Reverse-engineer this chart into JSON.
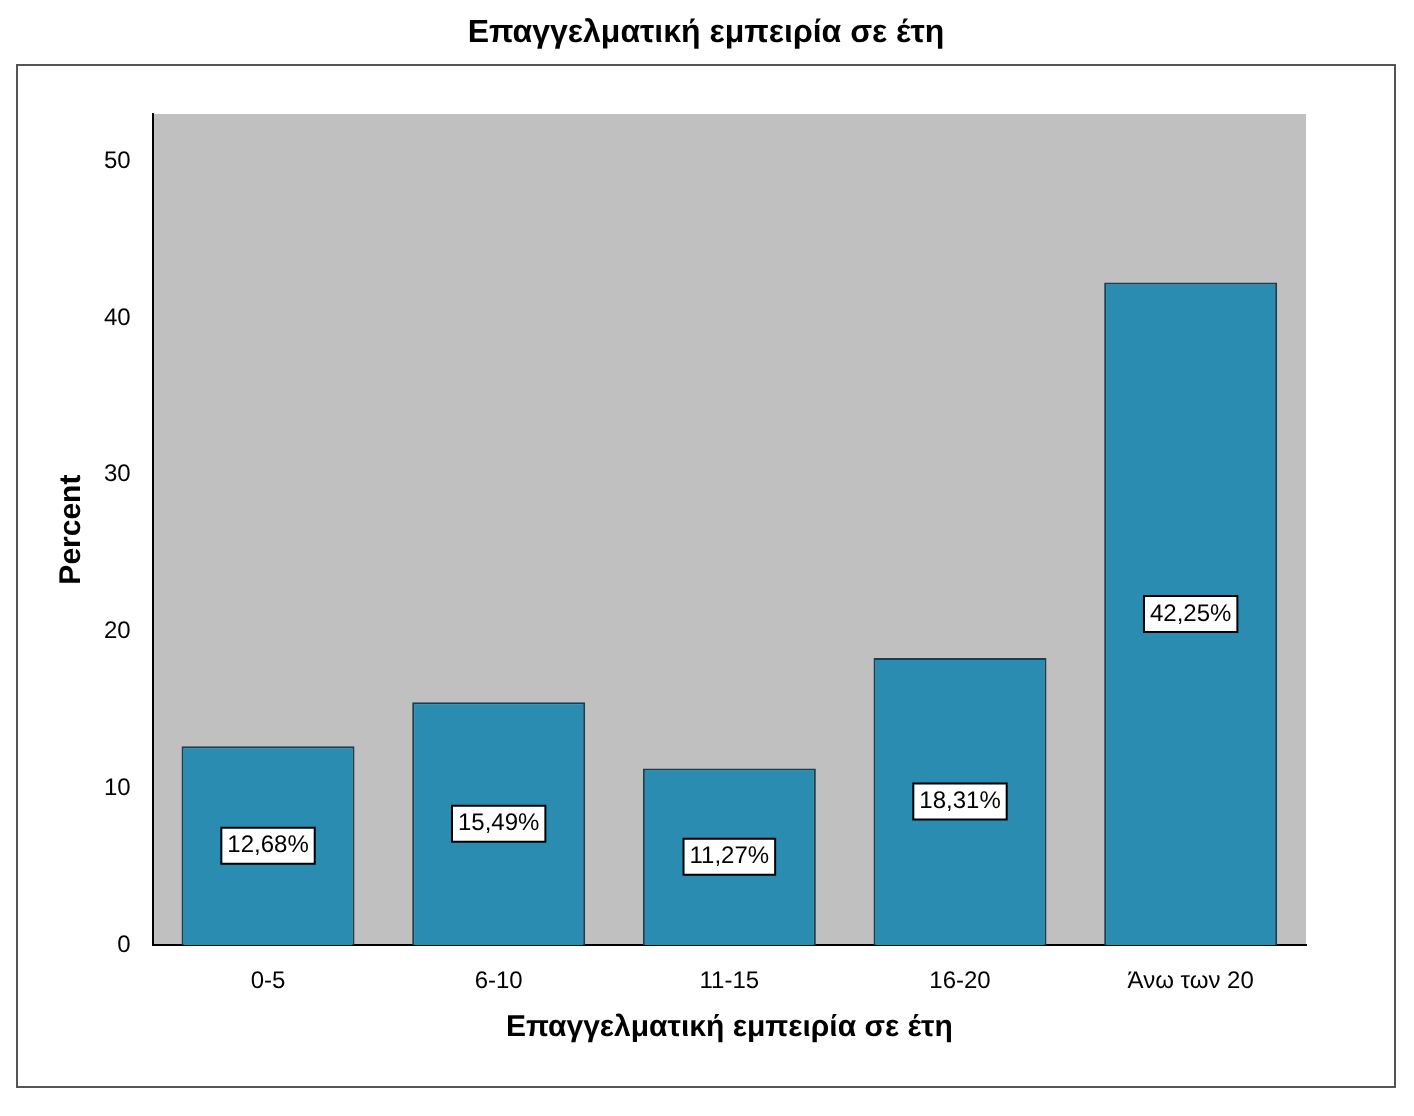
{
  "chart_data": {
    "type": "bar",
    "title": "Επαγγελματική εμπειρία σε έτη",
    "xlabel": "Επαγγελματική εμπειρία σε έτη",
    "ylabel": "Percent",
    "categories": [
      "0-5",
      "6-10",
      "11-15",
      "16-20",
      "Άνω των 20"
    ],
    "values": [
      12.68,
      15.49,
      11.27,
      18.31,
      42.25
    ],
    "value_labels": [
      "12,68%",
      "15,49%",
      "11,27%",
      "18,31%",
      "42,25%"
    ],
    "color": "#2a8cb0",
    "ylim": [
      0,
      53
    ],
    "yticks": [
      0,
      10,
      20,
      30,
      40,
      50
    ],
    "grid": false,
    "legend": false
  }
}
